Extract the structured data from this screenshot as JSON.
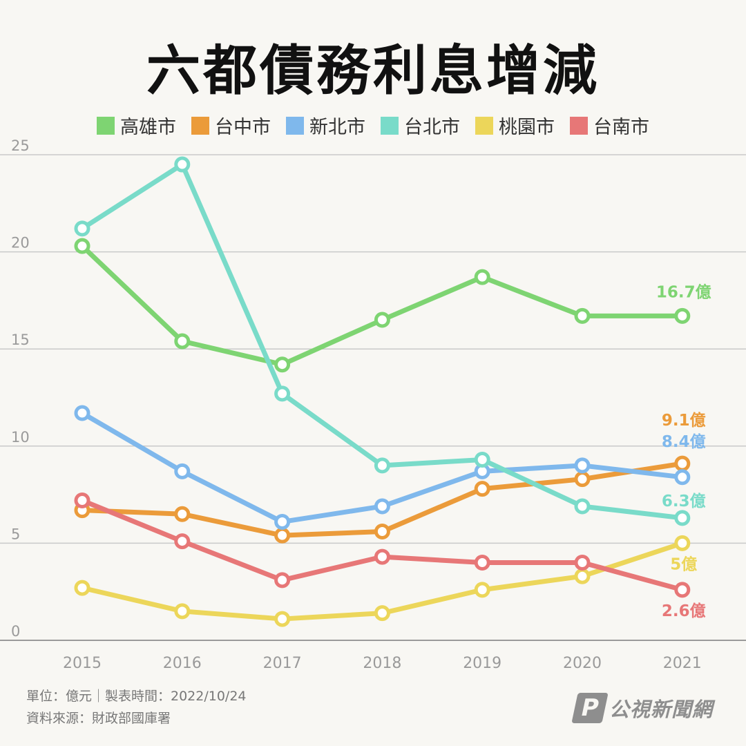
{
  "title": "六都債務利息增減",
  "footer": {
    "unit_line": "單位：億元｜製表時間：2022/10/24",
    "source_line": "資料來源：財政部國庫署"
  },
  "brand": {
    "logo_letter": "P",
    "name": "公視新聞網"
  },
  "chart_data": {
    "type": "line",
    "title": "六都債務利息增減",
    "xlabel": "",
    "ylabel": "",
    "x": [
      "2015",
      "2016",
      "2017",
      "2018",
      "2019",
      "2020",
      "2021"
    ],
    "ylim": [
      0,
      25
    ],
    "yticks": [
      0,
      5,
      10,
      15,
      20,
      25
    ],
    "grid": true,
    "legend_position": "top",
    "series": [
      {
        "name": "高雄市",
        "color": "#7ed472",
        "values": [
          20.3,
          15.4,
          14.2,
          16.5,
          18.7,
          16.7,
          16.7
        ],
        "end_label": "16.7億"
      },
      {
        "name": "台中市",
        "color": "#eb9b3a",
        "values": [
          6.7,
          6.5,
          5.4,
          5.6,
          7.8,
          8.3,
          9.1
        ],
        "end_label": "9.1億"
      },
      {
        "name": "新北市",
        "color": "#7fb8ec",
        "values": [
          11.7,
          8.7,
          6.1,
          6.9,
          8.7,
          9.0,
          8.4
        ],
        "end_label": "8.4億"
      },
      {
        "name": "台北市",
        "color": "#79dbc9",
        "values": [
          21.2,
          24.5,
          12.7,
          9.0,
          9.3,
          6.9,
          6.3
        ],
        "end_label": "6.3億"
      },
      {
        "name": "桃園市",
        "color": "#ecd65a",
        "values": [
          2.7,
          1.5,
          1.1,
          1.4,
          2.6,
          3.3,
          5.0
        ],
        "end_label": "5億"
      },
      {
        "name": "台南市",
        "color": "#e77777",
        "values": [
          7.2,
          5.1,
          3.1,
          4.3,
          4.0,
          4.0,
          2.6
        ],
        "end_label": "2.6億"
      }
    ]
  }
}
